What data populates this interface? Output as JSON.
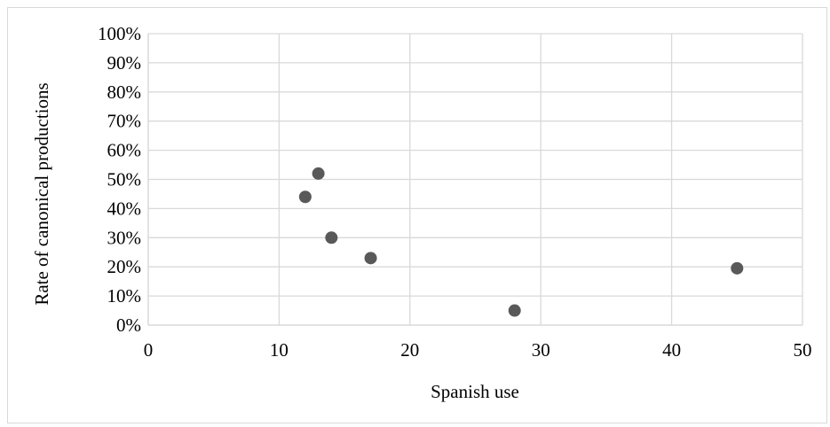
{
  "chart_data": {
    "type": "scatter",
    "title": "",
    "xlabel": "Spanish use",
    "ylabel": "Rate of canonical productions",
    "xlim": [
      0,
      50
    ],
    "ylim": [
      0,
      1
    ],
    "x_ticks": [
      0,
      10,
      20,
      30,
      40,
      50
    ],
    "x_tick_labels": [
      "0",
      "10",
      "20",
      "30",
      "40",
      "50"
    ],
    "y_ticks": [
      0,
      0.1,
      0.2,
      0.3,
      0.4,
      0.5,
      0.6,
      0.7,
      0.8,
      0.9,
      1.0
    ],
    "y_tick_labels": [
      "0%",
      "10%",
      "20%",
      "30%",
      "40%",
      "50%",
      "60%",
      "70%",
      "80%",
      "90%",
      "100%"
    ],
    "grid": true,
    "legend": "none",
    "marker_color": "#595959",
    "grid_color": "#d9d9d9",
    "series": [
      {
        "points": [
          {
            "x": 12,
            "y": 0.44
          },
          {
            "x": 13,
            "y": 0.52
          },
          {
            "x": 14,
            "y": 0.3
          },
          {
            "x": 17,
            "y": 0.23
          },
          {
            "x": 28,
            "y": 0.05
          },
          {
            "x": 45,
            "y": 0.195
          }
        ]
      }
    ]
  }
}
